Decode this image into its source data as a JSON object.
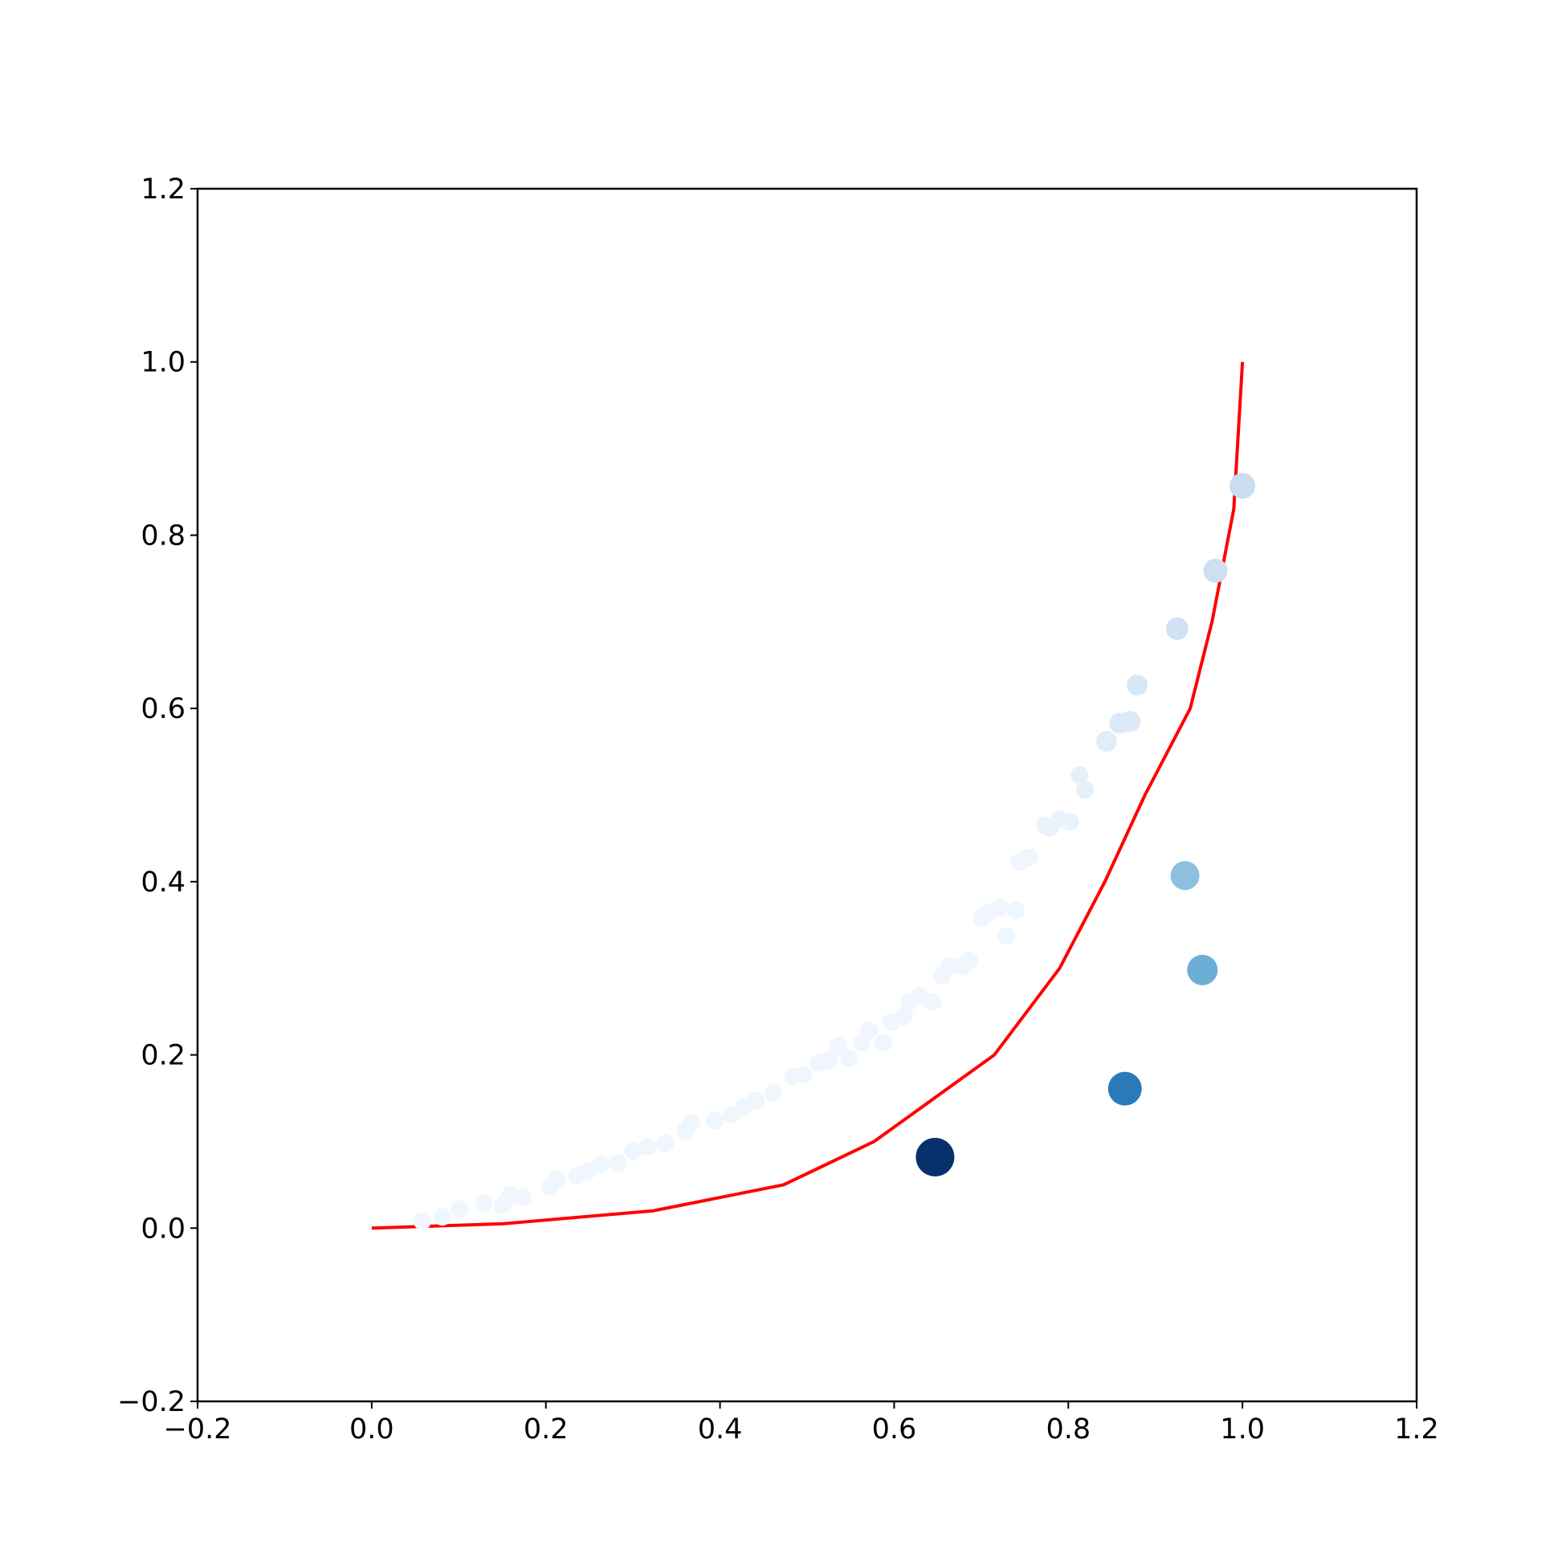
{
  "chart_data": {
    "type": "scatter",
    "xlim": [
      -0.2,
      1.2
    ],
    "ylim": [
      -0.2,
      1.2
    ],
    "xticks": [
      {
        "value": -0.2,
        "label": "−0.2"
      },
      {
        "value": 0,
        "label": "0.0"
      },
      0.2,
      0.4,
      0.6,
      0.8,
      {
        "value": 1,
        "label": "1.0"
      },
      1.2
    ],
    "yticks": [
      {
        "value": -0.2,
        "label": "−0.2"
      },
      {
        "value": 0,
        "label": "0.0"
      },
      0.2,
      0.4,
      0.6,
      0.8,
      {
        "value": 1,
        "label": "1.0"
      },
      1.2
    ],
    "grid": false,
    "series": [
      {
        "x": [
          0.058,
          0.081,
          0.101,
          0.129,
          0.15,
          0.159,
          0.173,
          0.205,
          0.213,
          0.236,
          0.248,
          0.263,
          0.283,
          0.3,
          0.317,
          0.337,
          0.36,
          0.367,
          0.394,
          0.413,
          0.427,
          0.441,
          0.461,
          0.484,
          0.496,
          0.513,
          0.525,
          0.536,
          0.548,
          0.563,
          0.571,
          0.588,
          0.597,
          0.611,
          0.617,
          0.629,
          0.644,
          0.655,
          0.663,
          0.678,
          0.686,
          0.701,
          0.709,
          0.721,
          0.729,
          0.74,
          0.744,
          0.755,
          0.773,
          0.779,
          0.79,
          0.802,
          0.813,
          0.819,
          0.844,
          0.859,
          0.871,
          0.879,
          0.925,
          0.969,
          1.0,
          0.934,
          0.954,
          0.865,
          0.647
        ],
        "values": [
          0.008,
          0.013,
          0.022,
          0.029,
          0.027,
          0.038,
          0.036,
          0.048,
          0.057,
          0.061,
          0.066,
          0.073,
          0.075,
          0.089,
          0.094,
          0.098,
          0.112,
          0.122,
          0.124,
          0.131,
          0.14,
          0.147,
          0.156,
          0.175,
          0.177,
          0.191,
          0.194,
          0.21,
          0.196,
          0.214,
          0.228,
          0.214,
          0.238,
          0.244,
          0.261,
          0.268,
          0.261,
          0.291,
          0.302,
          0.302,
          0.309,
          0.358,
          0.365,
          0.37,
          0.337,
          0.367,
          0.423,
          0.428,
          0.465,
          0.462,
          0.472,
          0.469,
          0.523,
          0.506,
          0.562,
          0.583,
          0.585,
          0.627,
          0.692,
          0.759,
          0.857,
          0.407,
          0.298,
          0.161,
          0.082
        ],
        "sizes": [
          121,
          121,
          121,
          121,
          121,
          121,
          121,
          121,
          121,
          121,
          121,
          121,
          121,
          121,
          121,
          121,
          121,
          121,
          121,
          121,
          121,
          121,
          121,
          121,
          121,
          121,
          121,
          121,
          121,
          121,
          121,
          121,
          121,
          121,
          121,
          121,
          121,
          121,
          121,
          121,
          121,
          121,
          121,
          121,
          121,
          121,
          121,
          121,
          121,
          121,
          121,
          121,
          121,
          121,
          169,
          169,
          169,
          169,
          196,
          225,
          256,
          324,
          361,
          441,
          576
        ],
        "colors": [
          "#f0f6fd",
          "#f0f6fd",
          "#f0f6fd",
          "#f0f6fd",
          "#f0f6fd",
          "#f0f6fd",
          "#f0f6fd",
          "#f0f6fd",
          "#f0f6fd",
          "#f0f6fd",
          "#f0f6fd",
          "#f0f6fd",
          "#f0f6fd",
          "#f0f6fd",
          "#f0f6fd",
          "#f0f6fd",
          "#f0f6fd",
          "#f0f6fd",
          "#f0f6fd",
          "#f0f6fd",
          "#f0f6fd",
          "#f0f6fd",
          "#f0f6fd",
          "#f0f6fd",
          "#f0f6fd",
          "#f0f6fd",
          "#f0f6fd",
          "#f0f6fd",
          "#f0f6fd",
          "#f0f6fd",
          "#f0f6fd",
          "#f0f6fd",
          "#f0f6fd",
          "#f0f6fd",
          "#f0f6fd",
          "#f0f6fd",
          "#f0f6fd",
          "#f0f6fd",
          "#f0f6fd",
          "#f0f6fd",
          "#f0f6fd",
          "#f0f6fd",
          "#f0f6fd",
          "#f0f6fd",
          "#f0f6fd",
          "#f0f6fd",
          "#f0f6fd",
          "#f0f6fd",
          "#eaf2fb",
          "#eaf2fb",
          "#eaf2fb",
          "#eaf2fb",
          "#e6f0f9",
          "#e6f0f9",
          "#e1edf8",
          "#dce9f6",
          "#dce9f6",
          "#d8e7f5",
          "#d0e2f3",
          "#cddff1",
          "#c9ddf0",
          "#8dc0de",
          "#6daed6",
          "#2a7ab9",
          "#08306b"
        ]
      }
    ],
    "line": {
      "color": "#ff0000",
      "x": [
        0,
        0.15,
        0.323,
        0.473,
        0.577,
        0.715,
        0.79,
        0.842,
        0.888,
        0.94,
        0.965,
        0.99,
        1.0
      ],
      "values": [
        0,
        0.005,
        0.02,
        0.05,
        0.1,
        0.2,
        0.3,
        0.4,
        0.5,
        0.6,
        0.7,
        0.83,
        1.0
      ]
    }
  }
}
